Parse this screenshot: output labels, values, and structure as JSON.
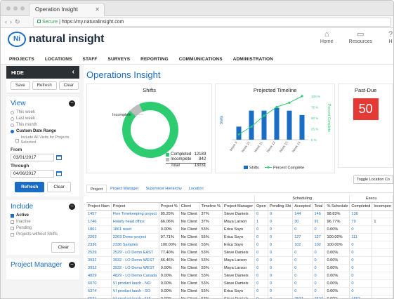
{
  "browser": {
    "tab_title": "Operation Insight",
    "secure_label": "Secure",
    "url": "https://my.naturalinsight.com"
  },
  "header": {
    "logo_badge": "Ni",
    "logo_text": "natural insight",
    "icons": [
      {
        "label": "Home",
        "icon": "home-icon"
      },
      {
        "label": "Resources",
        "icon": "briefcase-icon"
      },
      {
        "label": "H",
        "icon": "help-icon"
      }
    ]
  },
  "nav": [
    "PROJECTS",
    "LOCATIONS",
    "STAFF",
    "SURVEYS",
    "REPORTING",
    "COMMUNICATIONS",
    "ADMINISTRATION"
  ],
  "sidebar": {
    "hide_label": "HIDE",
    "buttons": [
      "Save",
      "Refresh",
      "Clear"
    ],
    "view": {
      "title": "View",
      "options": [
        "This week",
        "Last week",
        "This month",
        "Custom Date Range"
      ],
      "selected": "Custom Date Range",
      "include_all_label": "Include All Visits for Projects Selected",
      "from_label": "From",
      "from_value": "03/01/2017",
      "through_label": "Through",
      "through_value": "04/06/2017",
      "refresh_label": "Refresh",
      "clear_label": "Clear"
    },
    "include": {
      "title": "Include",
      "options": [
        {
          "label": "Active",
          "checked": true
        },
        {
          "label": "Inactive",
          "checked": false
        },
        {
          "label": "Pending",
          "checked": false
        },
        {
          "label": "Projects without Shifts",
          "checked": false
        }
      ],
      "clear_label": "Clear"
    },
    "project_manager": {
      "title": "Project Manager"
    }
  },
  "main": {
    "title": "Operations Insight",
    "shifts_card": {
      "title": "Shifts",
      "incomplete_label": "Incomplete",
      "legend": [
        {
          "label": "Completed",
          "value": "12189",
          "color": "#2ecc71"
        },
        {
          "label": "Incomplete",
          "value": "842",
          "color": "#bdbdbd"
        }
      ],
      "total_label": "Total",
      "total_value": "13031"
    },
    "timeline_card": {
      "title": "Projected Timeline",
      "y_left_label": "Shifts",
      "y_right_label": "Percent Complete",
      "y_right_ticks": [
        "100 %",
        "75 %",
        "50 %",
        "25 %",
        "0 %"
      ],
      "legend_shifts": "Shifts",
      "legend_percent": "Percent Complete"
    },
    "pastdue_card": {
      "title": "Past-Due",
      "value": "50"
    },
    "toggle_label": "Toggle Location Co",
    "tabs": [
      "Project",
      "Project Manager",
      "Supervisor Hierarchy",
      "Location"
    ],
    "table": {
      "group_headers": {
        "scheduling": "Scheduling",
        "execution": "Execu"
      },
      "columns": [
        "Project Num",
        "Project",
        "Project %",
        "Client",
        "Timeline %",
        "Project Manager",
        "Open",
        "Pending Shi",
        "Accepted",
        "Total",
        "% Schedule",
        "Completed",
        "Incompen"
      ],
      "rows": [
        [
          "1457",
          "Flex Timekeeping project",
          "85.25%",
          "No Client",
          "37%",
          "Steve Daniels",
          "0",
          "0",
          "144",
          "146",
          "98.83%",
          "136",
          ""
        ],
        [
          "1746",
          "Hourly head office",
          "66.06%",
          "No Client",
          "37%",
          "Maya Larson",
          "1",
          "0",
          "30",
          "91",
          "96.77%",
          "79",
          "1"
        ],
        [
          "1861",
          "1861 reset",
          "0.00%",
          "No Client",
          "53%",
          "Erica Soyo",
          "0",
          "0",
          "0",
          "0",
          "0.00%",
          "0",
          ""
        ],
        [
          "2263",
          "2263 Demo project",
          "97.71%",
          "No Client",
          "55%",
          "Erica Soyo",
          "0",
          "0",
          "127",
          "127",
          "100.00%",
          "111",
          ""
        ],
        [
          "2336",
          "2336 Samples",
          "100.00%",
          "No Client",
          "53%",
          "Erica Soyo",
          "0",
          "0",
          "102",
          "102",
          "100.00%",
          "0",
          ""
        ],
        [
          "2529",
          "2529 - LO Demo EAST",
          "77.40%",
          "No Client",
          "53%",
          "Steve Daniels",
          "0",
          "0",
          "0",
          "0",
          "0.00%",
          "0",
          ""
        ],
        [
          "3932",
          "3932 - LO Demo WEST",
          "66.46%",
          "No Client",
          "53%",
          "Maya Larson",
          "0",
          "0",
          "0",
          "0",
          "0.00%",
          "0",
          ""
        ],
        [
          "3932",
          "3932 - LO Demo WEST",
          "0.00%",
          "No Client",
          "53%",
          "Maya Larson",
          "0",
          "0",
          "0",
          "0",
          "0.00%",
          "0",
          ""
        ],
        [
          "4829",
          "4829 - LO Demo Canada",
          "0.00%",
          "No Client",
          "53%",
          "Steve Daniels",
          "0",
          "0",
          "0",
          "0",
          "0.00%",
          "0",
          ""
        ],
        [
          "6070",
          "VI product lauch - NO",
          "0.00%",
          "No Client",
          "53%",
          "Steve Daniels",
          "0",
          "0",
          "0",
          "0",
          "0.00%",
          "0",
          ""
        ],
        [
          "6374",
          "VI product lauch - SO",
          "0.00%",
          "No Client",
          "53%",
          "Erica Soyo",
          "0",
          "0",
          "0",
          "0",
          "0.00%",
          "0",
          ""
        ],
        [
          "6531",
          "VI product lauch - MA",
          "0.00%",
          "No Client",
          "53%",
          "Steve Daniels",
          "0",
          "0",
          "2527",
          "2527",
          "0.00%",
          "1897",
          ""
        ]
      ]
    }
  },
  "chart_data": [
    {
      "type": "pie",
      "title": "Shifts",
      "labels": [
        "Completed",
        "Incomplete"
      ],
      "values": [
        12189,
        842
      ],
      "colors": [
        "#2ecc71",
        "#bdbdbd"
      ]
    },
    {
      "type": "bar",
      "title": "Projected Timeline",
      "categories": [
        "Week 9",
        "Week 10",
        "Week 11",
        "Week 12",
        "Week 13",
        "Week 14"
      ],
      "series": [
        {
          "name": "Shifts",
          "values": [
            18,
            40,
            40,
            44,
            40,
            34
          ]
        },
        {
          "name": "Percent Complete",
          "values": [
            12,
            30,
            55,
            75,
            85,
            100
          ]
        }
      ],
      "ylabel": "Shifts",
      "y2label": "Percent Complete",
      "ylim": [
        0,
        60
      ],
      "y2lim": [
        0,
        100
      ],
      "colors": [
        "#1a6dc4",
        "#2ecc71"
      ]
    }
  ]
}
